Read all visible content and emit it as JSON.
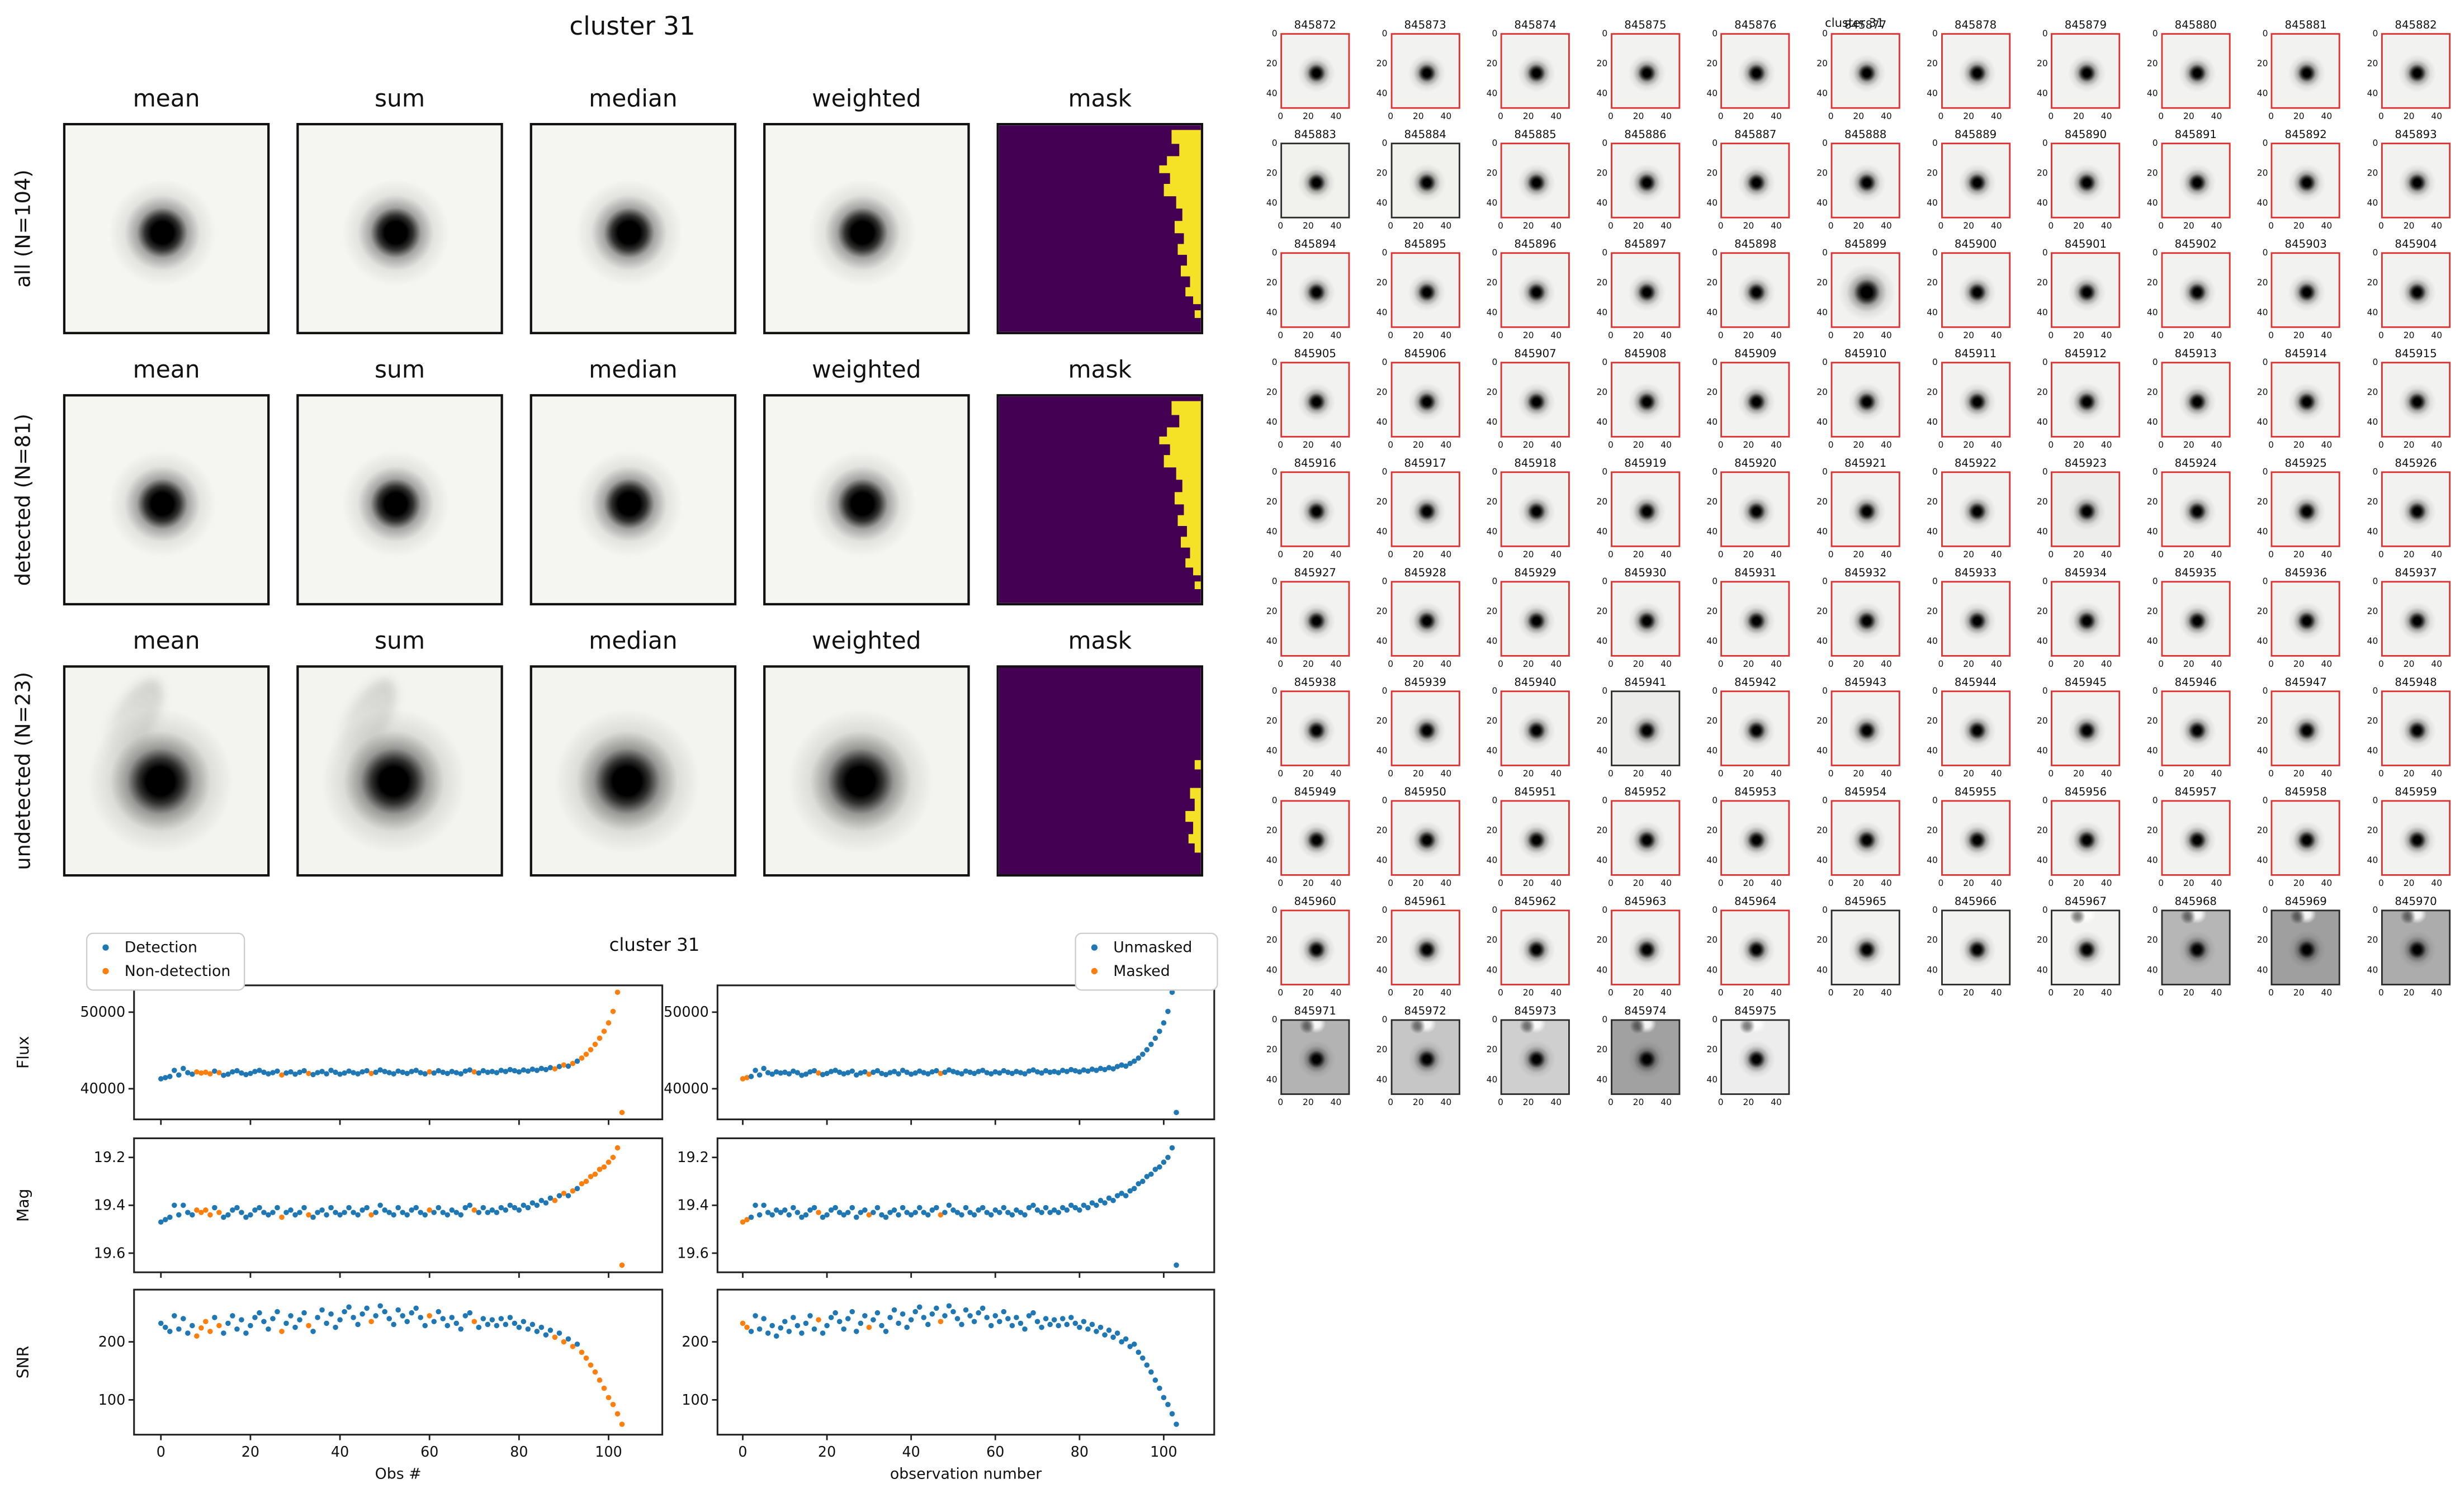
{
  "stamp_grid": {
    "title": "cluster 31",
    "columns": [
      "mean",
      "sum",
      "median",
      "weighted",
      "mask"
    ],
    "rows": [
      {
        "label": "all (N=104)"
      },
      {
        "label": "detected (N=81)"
      },
      {
        "label": "undetected (N=23)"
      }
    ]
  },
  "colors": {
    "detection_blue": "#1f77b4",
    "non_detection_orange": "#ff7f0e",
    "mask_bg": "#440154",
    "mask_fg": "#f5e125",
    "thumb_border_red": "#e03131",
    "thumb_border_black": "#2b2b2b"
  },
  "chart_data": {
    "type": "scatter",
    "title": "cluster 31",
    "x_label_left": "Obs #",
    "x_label_right": "observation number",
    "x_ticks": [
      0,
      20,
      40,
      60,
      80,
      100
    ],
    "legend_left": [
      "Detection",
      "Non-detection"
    ],
    "legend_right": [
      "Unmasked",
      "Masked"
    ],
    "panels": [
      {
        "ylabel": "Flux",
        "yticks": [
          50000,
          40000
        ],
        "ylim": [
          36000,
          53500
        ]
      },
      {
        "ylabel": "Mag",
        "yticks": [
          19.2,
          19.4,
          19.6
        ],
        "ylim": [
          19.68,
          19.12
        ]
      },
      {
        "ylabel": "SNR",
        "yticks": [
          200,
          100
        ],
        "ylim": [
          40,
          290
        ]
      }
    ],
    "flux": [
      41300,
      41450,
      41600,
      42400,
      41800,
      42650,
      42100,
      41900,
      42200,
      42050,
      42150,
      41950,
      42300,
      42100,
      41750,
      41900,
      42200,
      42350,
      42050,
      41850,
      42000,
      42250,
      42400,
      42150,
      41950,
      42100,
      42300,
      41800,
      42050,
      42200,
      41900,
      42150,
      42350,
      42000,
      41850,
      42100,
      42250,
      41950,
      42400,
      42150,
      41900,
      42050,
      42300,
      42100,
      41950,
      42200,
      42350,
      42000,
      42150,
      42450,
      42250,
      42100,
      41950,
      42300,
      42150,
      42000,
      42250,
      42400,
      42100,
      41950,
      42200,
      42050,
      42350,
      42150,
      42000,
      42250,
      42100,
      41950,
      42300,
      42450,
      42200,
      42050,
      42350,
      42150,
      42250,
      42100,
      42400,
      42250,
      42500,
      42350,
      42200,
      42450,
      42300,
      42550,
      42400,
      42650,
      42500,
      42750,
      42600,
      42900,
      43100,
      42950,
      43300,
      43600,
      44000,
      44500,
      45100,
      45800,
      46600,
      47500,
      48600,
      50100,
      52600,
      36900
    ],
    "mag": [
      19.47,
      19.46,
      19.45,
      19.4,
      19.44,
      19.4,
      19.43,
      19.44,
      19.42,
      19.43,
      19.42,
      19.44,
      19.41,
      19.43,
      19.45,
      19.44,
      19.42,
      19.41,
      19.43,
      19.45,
      19.44,
      19.42,
      19.41,
      19.43,
      19.44,
      19.43,
      19.41,
      19.45,
      19.43,
      19.42,
      19.44,
      19.43,
      19.41,
      19.44,
      19.45,
      19.43,
      19.42,
      19.44,
      19.41,
      19.43,
      19.44,
      19.43,
      19.41,
      19.43,
      19.44,
      19.42,
      19.41,
      19.44,
      19.43,
      19.4,
      19.42,
      19.43,
      19.44,
      19.41,
      19.43,
      19.44,
      19.42,
      19.41,
      19.43,
      19.44,
      19.42,
      19.43,
      19.41,
      19.43,
      19.44,
      19.42,
      19.43,
      19.44,
      19.41,
      19.4,
      19.42,
      19.43,
      19.41,
      19.43,
      19.42,
      19.43,
      19.41,
      19.42,
      19.4,
      19.41,
      19.42,
      19.4,
      19.41,
      19.39,
      19.4,
      19.38,
      19.39,
      19.37,
      19.38,
      19.36,
      19.35,
      19.36,
      19.34,
      19.33,
      19.31,
      19.3,
      19.28,
      19.27,
      19.25,
      19.24,
      19.22,
      19.2,
      19.16,
      19.65
    ],
    "snr": [
      232,
      225,
      218,
      245,
      222,
      240,
      215,
      228,
      210,
      224,
      235,
      218,
      242,
      228,
      215,
      232,
      245,
      222,
      238,
      215,
      228,
      242,
      250,
      235,
      222,
      240,
      252,
      218,
      232,
      245,
      225,
      238,
      250,
      228,
      218,
      242,
      255,
      232,
      248,
      225,
      238,
      252,
      260,
      242,
      230,
      248,
      258,
      235,
      245,
      262,
      252,
      240,
      230,
      255,
      245,
      235,
      250,
      258,
      242,
      228,
      245,
      235,
      252,
      240,
      228,
      242,
      232,
      222,
      245,
      250,
      235,
      225,
      240,
      230,
      238,
      228,
      240,
      230,
      242,
      232,
      225,
      235,
      222,
      230,
      218,
      225,
      212,
      220,
      208,
      215,
      200,
      205,
      192,
      196,
      182,
      172,
      160,
      148,
      134,
      120,
      104,
      92,
      76,
      58
    ],
    "non_detection_idx": [
      8,
      9,
      10,
      11,
      13,
      27,
      33,
      47,
      60,
      70,
      88,
      90,
      92,
      94,
      95,
      96,
      97,
      98,
      99,
      100,
      101,
      102,
      103
    ],
    "masked_idx": [
      0,
      1,
      18,
      30,
      47
    ]
  },
  "thumb_grid": {
    "title": "cluster 31",
    "x_ticks": [
      "0",
      "20",
      "40"
    ],
    "y_ticks": [
      "0",
      "20",
      "40"
    ],
    "ids": [
      845872,
      845873,
      845874,
      845875,
      845876,
      845877,
      845878,
      845879,
      845880,
      845881,
      845882,
      845883,
      845884,
      845885,
      845886,
      845887,
      845888,
      845889,
      845890,
      845891,
      845892,
      845893,
      845894,
      845895,
      845896,
      845897,
      845898,
      845899,
      845900,
      845901,
      845902,
      845903,
      845904,
      845905,
      845906,
      845907,
      845908,
      845909,
      845910,
      845911,
      845912,
      845913,
      845914,
      845915,
      845916,
      845917,
      845918,
      845919,
      845920,
      845921,
      845922,
      845923,
      845924,
      845925,
      845926,
      845927,
      845928,
      845929,
      845930,
      845931,
      845932,
      845933,
      845934,
      845935,
      845936,
      845937,
      845938,
      845939,
      845940,
      845941,
      845942,
      845943,
      845944,
      845945,
      845946,
      845947,
      845948,
      845949,
      845950,
      845951,
      845952,
      845953,
      845954,
      845955,
      845956,
      845957,
      845958,
      845959,
      845960,
      845961,
      845962,
      845963,
      845964,
      845965,
      845966,
      845967,
      845968,
      845969,
      845970,
      845971,
      845972,
      845973,
      845974,
      845975
    ],
    "black_border_ids": [
      845883,
      845884,
      845941,
      845965,
      845966,
      845967,
      845968,
      845969,
      845970,
      845971,
      845972,
      845973,
      845974,
      845975
    ],
    "artifact_ids": [
      845967,
      845968,
      845969,
      845970,
      845971,
      845972,
      845973,
      845974,
      845975
    ],
    "big_blob_ids": [
      845899
    ],
    "shades": {
      "845883": "#f1f1ee",
      "845884": "#f1f1ee",
      "845923": "#ededeb",
      "845941": "#ececea",
      "845968": "#b6b6b6",
      "845969": "#9f9f9f",
      "845970": "#acacac",
      "845971": "#b3b3b3",
      "845972": "#c6c6c6",
      "845973": "#cfcfcf",
      "845974": "#a1a1a1",
      "845975": "#ededed"
    }
  }
}
